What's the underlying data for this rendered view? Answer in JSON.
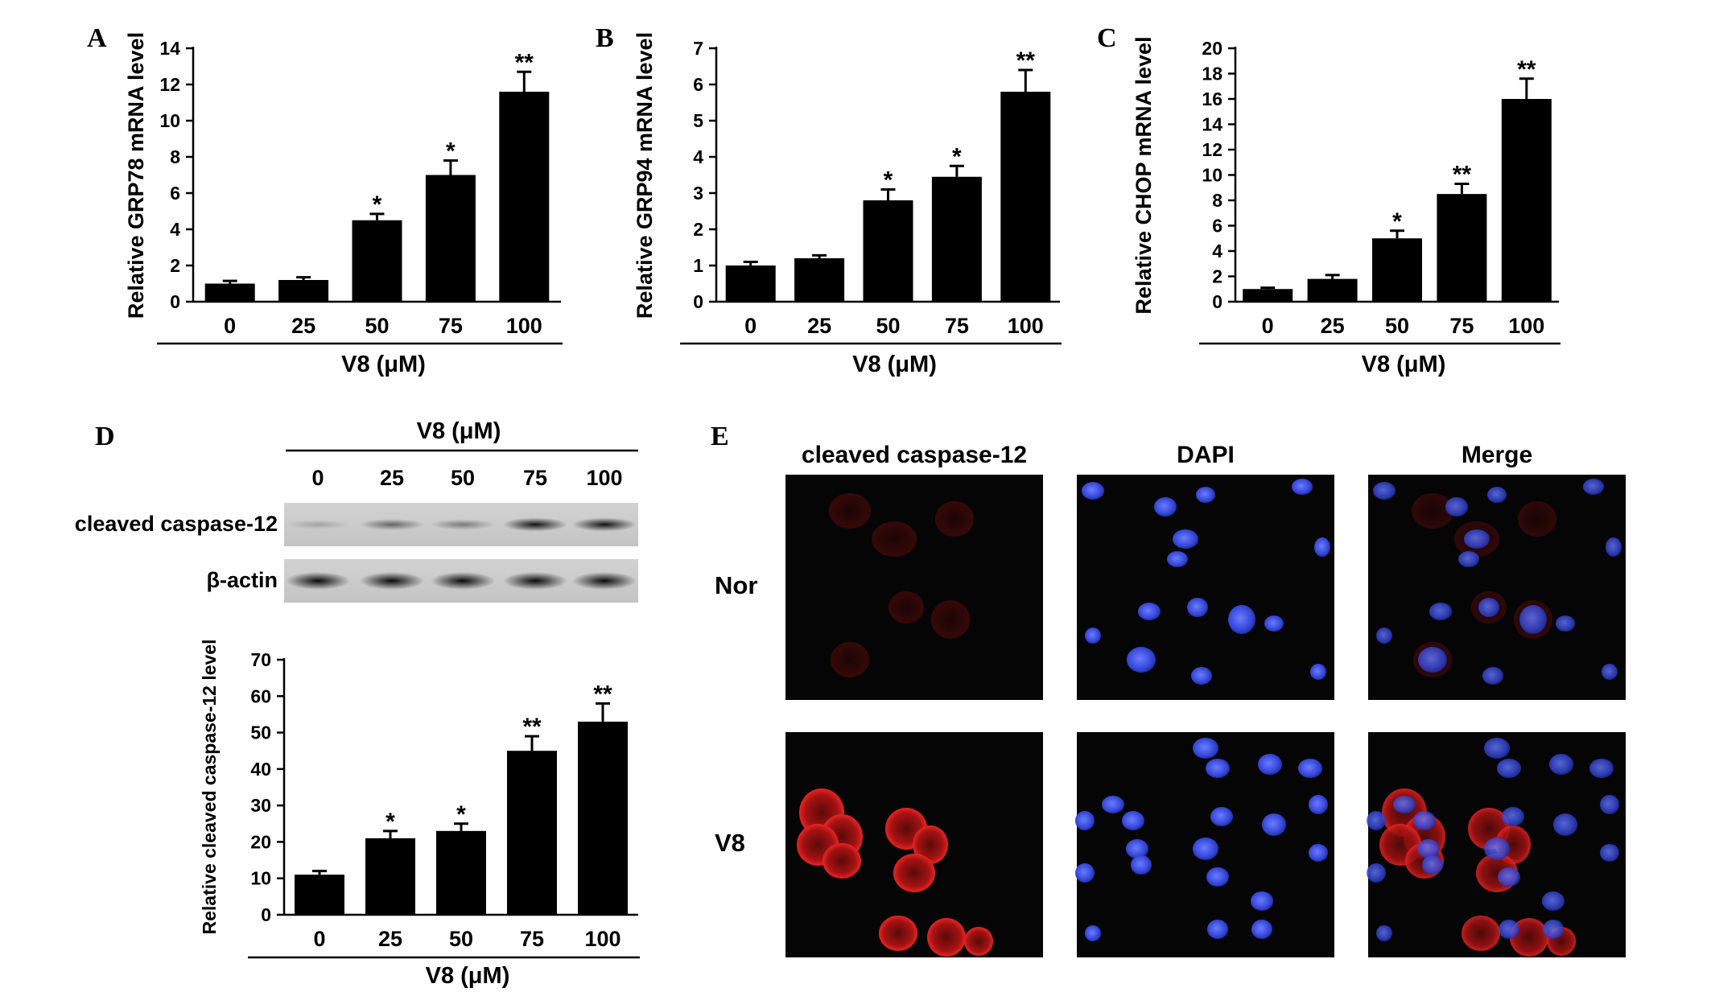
{
  "chart_data": [
    {
      "panel": "A",
      "type": "bar",
      "categories": [
        "0",
        "25",
        "50",
        "75",
        "100"
      ],
      "values": [
        1.0,
        1.2,
        4.5,
        7.0,
        11.6
      ],
      "errors": [
        0.15,
        0.15,
        0.35,
        0.8,
        1.1
      ],
      "significance": [
        "",
        "",
        "*",
        "*",
        "**"
      ],
      "ylabel": "Relative GRP78 mRNA level",
      "xlabel": "V8 (μM)",
      "ylim": [
        0,
        14
      ],
      "yticks": [
        0,
        2,
        4,
        6,
        8,
        10,
        12,
        14
      ]
    },
    {
      "panel": "B",
      "type": "bar",
      "categories": [
        "0",
        "25",
        "50",
        "75",
        "100"
      ],
      "values": [
        1.0,
        1.2,
        2.8,
        3.45,
        5.8
      ],
      "errors": [
        0.1,
        0.08,
        0.3,
        0.3,
        0.6
      ],
      "significance": [
        "",
        "",
        "*",
        "*",
        "**"
      ],
      "ylabel": "Relative GRP94 mRNA level",
      "xlabel": "V8 (μM)",
      "ylim": [
        0,
        7
      ],
      "yticks": [
        0,
        1,
        2,
        3,
        4,
        5,
        6,
        7
      ]
    },
    {
      "panel": "C",
      "type": "bar",
      "categories": [
        "0",
        "25",
        "50",
        "75",
        "100"
      ],
      "values": [
        1.0,
        1.8,
        5.0,
        8.5,
        16.0
      ],
      "errors": [
        0.1,
        0.3,
        0.6,
        0.8,
        1.6
      ],
      "significance": [
        "",
        "",
        "*",
        "**",
        "**"
      ],
      "ylabel": "Relative CHOP mRNA level",
      "xlabel": "V8 (μM)",
      "ylim": [
        0,
        20
      ],
      "yticks": [
        0,
        2,
        4,
        6,
        8,
        10,
        12,
        14,
        16,
        18,
        20
      ]
    },
    {
      "panel": "D",
      "type": "bar",
      "categories": [
        "0",
        "25",
        "50",
        "75",
        "100"
      ],
      "values": [
        11,
        21,
        23,
        45,
        53
      ],
      "errors": [
        1,
        2,
        2,
        4,
        5
      ],
      "significance": [
        "",
        "*",
        "*",
        "**",
        "**"
      ],
      "ylabel": "Relative cleaved caspase-12  level",
      "xlabel": "V8 (μM)",
      "ylim": [
        0,
        70
      ],
      "yticks": [
        0,
        10,
        20,
        30,
        40,
        50,
        60,
        70
      ]
    }
  ],
  "panel_labels": {
    "a": "A",
    "b": "B",
    "c": "C",
    "d": "D",
    "e": "E"
  },
  "blot": {
    "title": "V8 (μM)",
    "lanes": [
      "0",
      "25",
      "50",
      "75",
      "100"
    ],
    "rows": [
      {
        "label": "cleaved caspase-12",
        "intensity": [
          0.2,
          0.5,
          0.4,
          0.9,
          0.9
        ]
      },
      {
        "label": "β-actin",
        "intensity": [
          0.95,
          0.95,
          0.95,
          0.95,
          0.95
        ]
      }
    ]
  },
  "if_panel": {
    "columns": [
      "cleaved caspase-12",
      "DAPI",
      "Merge"
    ],
    "rows": [
      "Nor",
      "V8"
    ],
    "colors": {
      "red": "#e01818",
      "blue": "#3a4ee0",
      "background": "#050505"
    }
  }
}
